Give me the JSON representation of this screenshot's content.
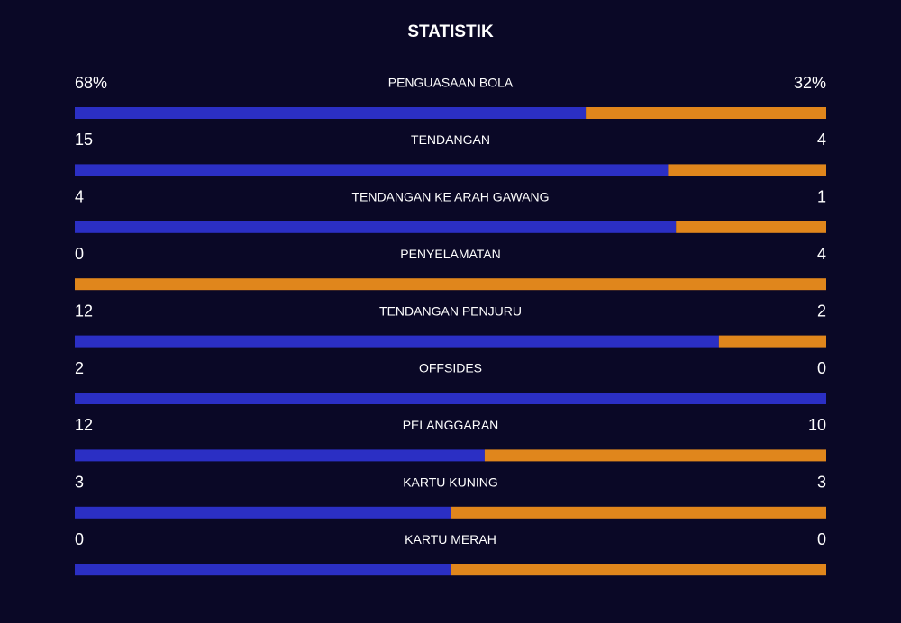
{
  "title": "STATISTIK",
  "stats": [
    {
      "label": "PENGUASAAN BOLA",
      "home": 68,
      "away": 32,
      "home_label": "68%",
      "away_label": "32%"
    },
    {
      "label": "TENDANGAN",
      "home": 15,
      "away": 4
    },
    {
      "label": "TENDANGAN KE ARAH GAWANG",
      "home": 4,
      "away": 1
    },
    {
      "label": "PENYELAMATAN",
      "home": 0,
      "away": 4
    },
    {
      "label": "TENDANGAN PENJURU",
      "home": 12,
      "away": 2
    },
    {
      "label": "OFFSIDES",
      "home": 2,
      "away": 0
    },
    {
      "label": "PELANGGARAN",
      "home": 12,
      "away": 10
    },
    {
      "label": "KARTU KUNING",
      "home": 3,
      "away": 3
    },
    {
      "label": "KARTU MERAH",
      "home": 0,
      "away": 0
    }
  ],
  "home_color": "#2b2fc4",
  "away_color": "#e0861c"
}
